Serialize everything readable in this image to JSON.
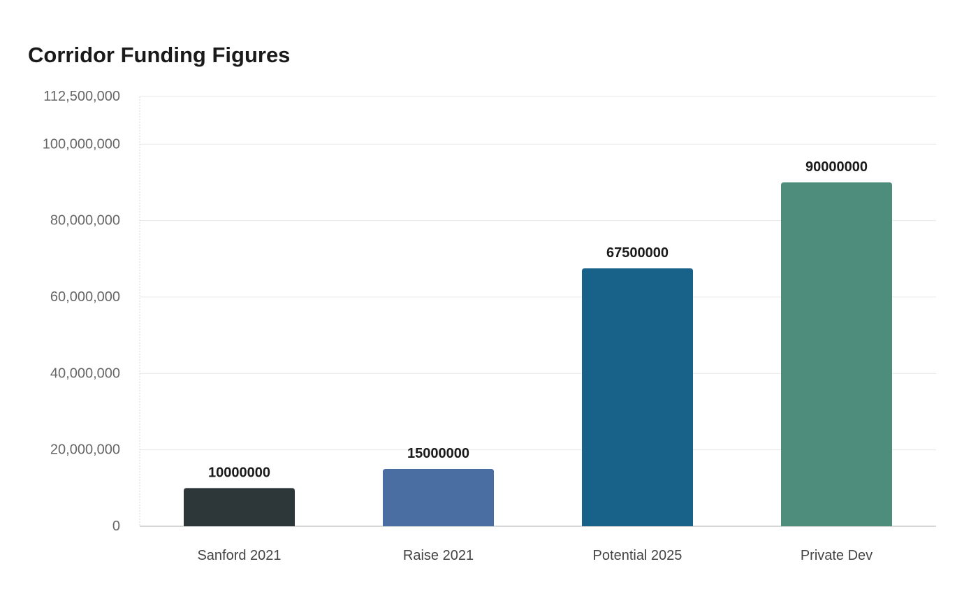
{
  "chart_data": {
    "type": "bar",
    "title": "Corridor Funding Figures",
    "categories": [
      "Sanford 2021",
      "Raise 2021",
      "Potential 2025",
      "Private Dev"
    ],
    "values": [
      10000000,
      15000000,
      67500000,
      90000000
    ],
    "data_labels": [
      "10000000",
      "15000000",
      "67500000",
      "90000000"
    ],
    "colors": [
      "#2d3639",
      "#4a6da2",
      "#186189",
      "#4e8c7b"
    ],
    "yticks": [
      0,
      20000000,
      40000000,
      60000000,
      80000000,
      100000000,
      112500000
    ],
    "ytick_labels": [
      "0",
      "20,000,000",
      "40,000,000",
      "60,000,000",
      "80,000,000",
      "100,000,000",
      "112,500,000"
    ],
    "ylim": [
      0,
      112500000
    ],
    "xlabel": "",
    "ylabel": "",
    "grid": true,
    "legend": false
  }
}
